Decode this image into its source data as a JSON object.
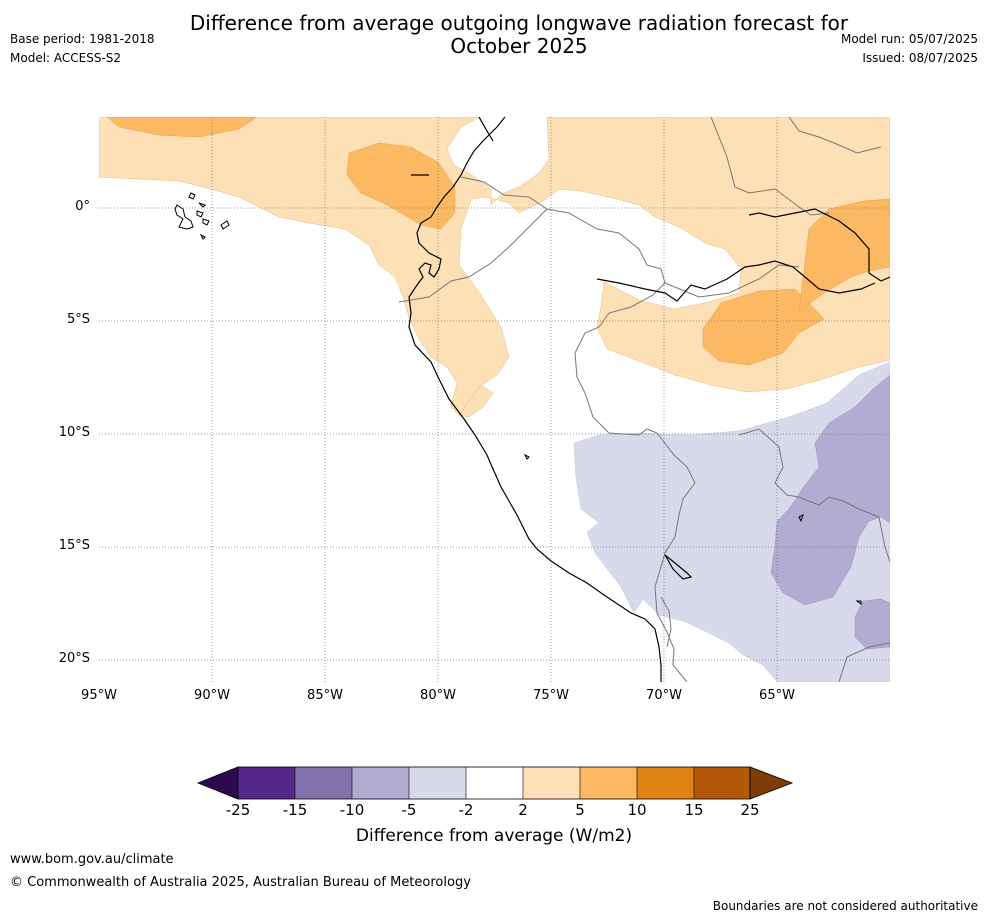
{
  "title_line1": "Difference from average outgoing longwave radiation forecast for",
  "title_line2": "October 2025",
  "base_period": "Base period: 1981-2018",
  "model": "Model: ACCESS-S2",
  "model_run": "Model run: 05/07/2025",
  "issued": "Issued: 08/07/2025",
  "lat_ticks": [
    "0°",
    "5°S",
    "10°S",
    "15°S",
    "20°S"
  ],
  "lon_ticks": [
    "95°W",
    "90°W",
    "85°W",
    "80°W",
    "75°W",
    "70°W",
    "65°W"
  ],
  "colorbar": {
    "label": "Difference from average (W/m2)",
    "ticks": [
      "-25",
      "-15",
      "-10",
      "-5",
      "-2",
      "2",
      "5",
      "10",
      "15",
      "25"
    ],
    "low_extend_color": "#2d0a4e",
    "high_extend_color": "#7f3b08",
    "colors": [
      "#542788",
      "#8073ac",
      "#b2abd2",
      "#d8daeb",
      "#ffffff",
      "#fee0b6",
      "#fdb863",
      "#e08214",
      "#b35806"
    ]
  },
  "legend_colors": {
    "neg_light": "#d8daeb",
    "neg_mid": "#b2abd2",
    "pos_light": "#fee0b6",
    "pos_mid": "#fdb863"
  },
  "footer": {
    "url": "www.bom.gov.au/climate",
    "copyright": "© Commonwealth of Australia 2025, Australian Bureau of Meteorology",
    "note": "Boundaries are not considered authoritative"
  }
}
